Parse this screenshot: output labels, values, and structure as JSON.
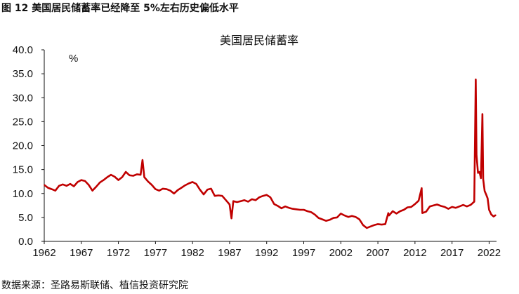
{
  "caption": "图 12 美国居民储蓄率已经降至 5%左右历史偏低水平",
  "source": "数据来源：圣路易斯联储、植信投资研究院",
  "chart_data": {
    "type": "line",
    "title": "美国居民储蓄率",
    "ylabel": "%",
    "xlabel": "",
    "ylim": [
      0,
      40
    ],
    "y_ticks": [
      "0.0",
      "5.0",
      "10.0",
      "15.0",
      "20.0",
      "25.0",
      "30.0",
      "35.0",
      "40.0"
    ],
    "x_ticks": [
      "1962",
      "1967",
      "1972",
      "1977",
      "1982",
      "1987",
      "1992",
      "1997",
      "2002",
      "2007",
      "2012",
      "2017",
      "2022"
    ],
    "xlim": [
      1962,
      2023
    ],
    "grid": false,
    "series": [
      {
        "color": "#c00000",
        "x": [
          1962.0,
          1962.5,
          1963.0,
          1963.5,
          1964.0,
          1964.5,
          1965.0,
          1965.5,
          1966.0,
          1966.5,
          1967.0,
          1967.5,
          1968.0,
          1968.5,
          1969.0,
          1969.5,
          1970.0,
          1970.5,
          1971.0,
          1971.5,
          1972.0,
          1972.5,
          1973.0,
          1973.5,
          1974.0,
          1974.5,
          1975.0,
          1975.25,
          1975.5,
          1976.0,
          1976.5,
          1977.0,
          1977.5,
          1978.0,
          1978.5,
          1979.0,
          1979.5,
          1980.0,
          1980.5,
          1981.0,
          1981.5,
          1982.0,
          1982.5,
          1983.0,
          1983.5,
          1984.0,
          1984.5,
          1985.0,
          1985.5,
          1986.0,
          1986.5,
          1987.0,
          1987.25,
          1987.5,
          1988.0,
          1988.5,
          1989.0,
          1989.5,
          1990.0,
          1990.5,
          1991.0,
          1991.5,
          1992.0,
          1992.5,
          1993.0,
          1993.5,
          1994.0,
          1994.5,
          1995.0,
          1995.5,
          1996.0,
          1996.5,
          1997.0,
          1997.5,
          1998.0,
          1998.5,
          1999.0,
          1999.5,
          2000.0,
          2000.5,
          2001.0,
          2001.5,
          2002.0,
          2002.5,
          2003.0,
          2003.5,
          2004.0,
          2004.5,
          2005.0,
          2005.5,
          2006.0,
          2006.5,
          2007.0,
          2007.5,
          2008.0,
          2008.4,
          2008.5,
          2009.0,
          2009.5,
          2010.0,
          2010.5,
          2011.0,
          2011.5,
          2012.0,
          2012.5,
          2012.9,
          2013.0,
          2013.5,
          2014.0,
          2014.5,
          2015.0,
          2015.5,
          2016.0,
          2016.5,
          2017.0,
          2017.5,
          2018.0,
          2018.5,
          2019.0,
          2019.5,
          2020.0,
          2020.2,
          2020.3,
          2020.5,
          2020.7,
          2020.9,
          2021.0,
          2021.1,
          2021.2,
          2021.4,
          2021.6,
          2021.8,
          2022.0,
          2022.3,
          2022.6,
          2022.9
        ],
        "values": [
          11.8,
          11.2,
          10.9,
          10.6,
          11.6,
          11.9,
          11.6,
          12.0,
          11.5,
          12.4,
          12.8,
          12.6,
          11.8,
          10.6,
          11.4,
          12.3,
          12.8,
          13.4,
          13.9,
          13.5,
          12.8,
          13.4,
          14.5,
          13.8,
          13.7,
          14.0,
          13.9,
          17.0,
          13.4,
          12.5,
          11.8,
          10.9,
          10.6,
          11.0,
          10.9,
          10.6,
          10.0,
          10.7,
          11.2,
          11.7,
          12.1,
          12.4,
          12.0,
          10.8,
          9.8,
          10.8,
          11.0,
          9.5,
          9.6,
          9.5,
          8.6,
          7.7,
          4.8,
          8.4,
          8.2,
          8.4,
          8.6,
          8.3,
          8.8,
          8.6,
          9.2,
          9.5,
          9.7,
          9.2,
          7.8,
          7.4,
          6.9,
          7.3,
          7.0,
          6.8,
          6.7,
          6.6,
          6.6,
          6.3,
          6.1,
          5.6,
          4.9,
          4.6,
          4.3,
          4.5,
          4.9,
          5.0,
          5.8,
          5.4,
          5.1,
          5.3,
          5.1,
          4.6,
          3.4,
          2.8,
          3.1,
          3.4,
          3.6,
          3.5,
          3.6,
          5.9,
          5.4,
          6.3,
          5.8,
          6.3,
          6.6,
          7.1,
          7.2,
          7.8,
          8.5,
          11.1,
          5.9,
          6.2,
          7.3,
          7.5,
          7.7,
          7.4,
          7.2,
          6.8,
          7.2,
          7.0,
          7.3,
          7.6,
          7.3,
          7.6,
          8.3,
          33.8,
          18.0,
          14.3,
          14.5,
          13.2,
          20.0,
          26.6,
          13.0,
          10.5,
          9.8,
          9.0,
          6.6,
          5.6,
          5.2,
          5.5
        ]
      }
    ]
  }
}
